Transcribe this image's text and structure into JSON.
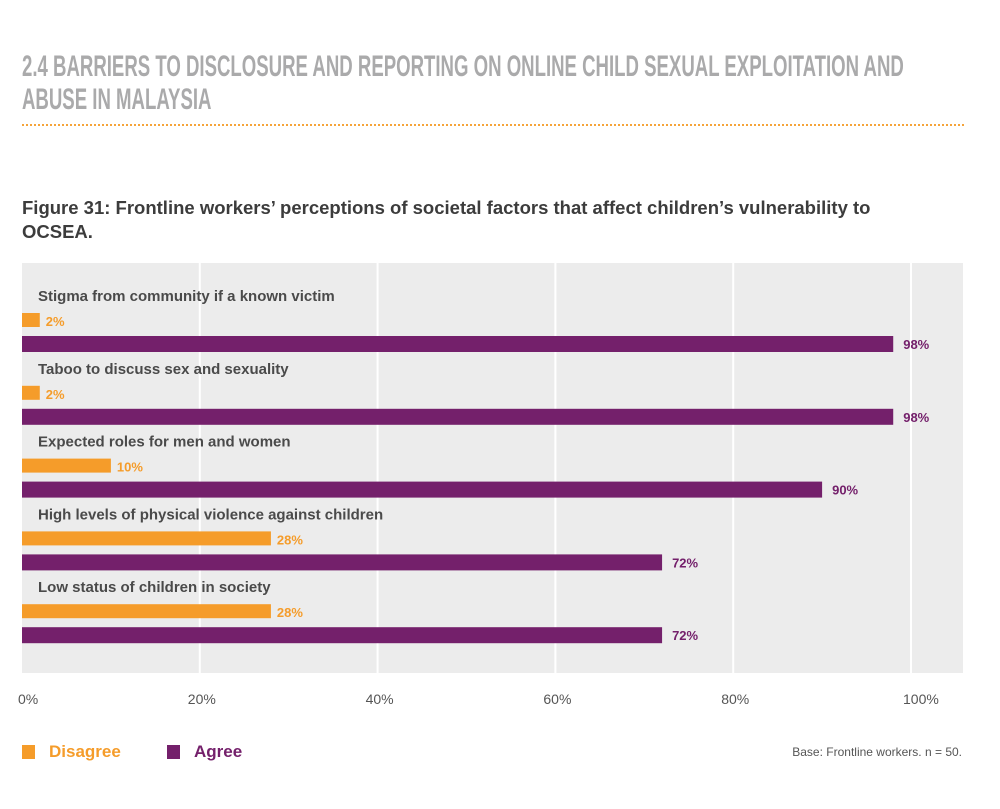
{
  "section_title": "2.4 BARRIERS TO DISCLOSURE AND REPORTING ON ONLINE CHILD SEXUAL EXPLOITATION AND ABUSE IN MALAYSIA",
  "chart_data": {
    "type": "bar",
    "orientation": "horizontal",
    "title": "Figure 31: Frontline workers’ perceptions of societal factors that affect children’s vulnerability to OCSEA.",
    "categories": [
      "Stigma from community if a known victim",
      "Taboo to discuss sex and sexuality",
      "Expected roles for men and women",
      "High levels of physical violence against children",
      "Low status of children in society"
    ],
    "series": [
      {
        "name": "Disagree",
        "color": "#f59c2a",
        "values": [
          2,
          2,
          10,
          28,
          28
        ],
        "labels": [
          "2%",
          "2%",
          "10%",
          "28%",
          "28%"
        ]
      },
      {
        "name": "Agree",
        "color": "#74206b",
        "values": [
          98,
          98,
          90,
          72,
          72
        ],
        "labels": [
          "98%",
          "98%",
          "90%",
          "72%",
          "72%"
        ]
      }
    ],
    "xlim": [
      0,
      100
    ],
    "xticks": [
      "0%",
      "20%",
      "40%",
      "60%",
      "80%",
      "100%"
    ],
    "grid": true,
    "background": "#ececec",
    "legend_placement": "bottom-left",
    "note": "Base: Frontline workers. n = 50."
  }
}
